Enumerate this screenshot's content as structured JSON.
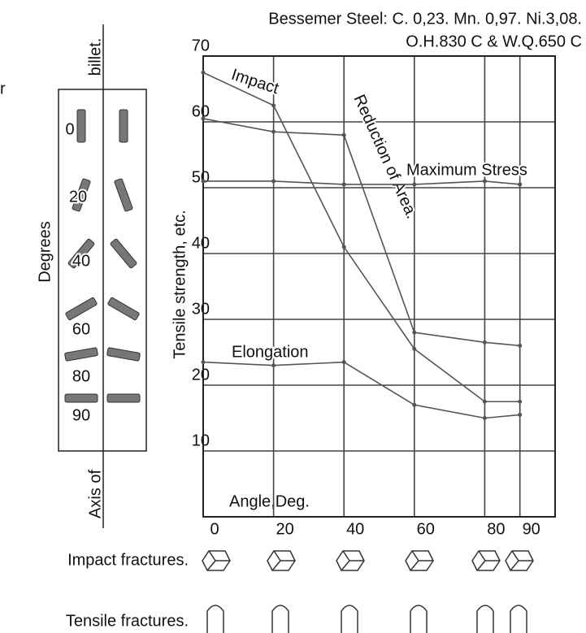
{
  "chart_data": {
    "type": "line",
    "title": "Bessemer Steel: C. 0,23. Mn. 0,97. Ni.3,08.",
    "subtitle": "O.H.830 C  &  W.Q.650 C",
    "y_label": "Tensile strength, etc.",
    "x_label": "Angle,Deg.",
    "x": [
      0,
      20,
      40,
      60,
      80,
      90
    ],
    "xlim": [
      0,
      100
    ],
    "xticks": [
      0,
      20,
      40,
      60,
      80,
      90
    ],
    "ylim": [
      0,
      70
    ],
    "yticks": [
      10,
      20,
      30,
      40,
      50,
      60,
      70
    ],
    "grid": true,
    "series": [
      {
        "name": "Impact",
        "color": "#555555",
        "values": [
          67.5,
          62.5,
          41,
          25.5,
          17.5,
          17.5
        ]
      },
      {
        "name": "Reduction of Area.",
        "color": "#555555",
        "values": [
          60.5,
          58.5,
          58,
          28,
          26.5,
          26
        ]
      },
      {
        "name": "Maximum Stress",
        "color": "#555555",
        "values": [
          51,
          51,
          50.5,
          50.5,
          51,
          50.5
        ]
      },
      {
        "name": "Elongation",
        "color": "#555555",
        "values": [
          23.5,
          23,
          23.5,
          17,
          15,
          15.5
        ]
      }
    ]
  },
  "specimen_diagram": {
    "top_label": "billet.",
    "bottom_label": "Axis of",
    "axis_label": "Degrees",
    "angles": [
      0,
      20,
      40,
      60,
      80,
      90
    ]
  },
  "fracture_rows": [
    "Impact fractures.",
    "Tensile fractures."
  ],
  "fragment": "r"
}
